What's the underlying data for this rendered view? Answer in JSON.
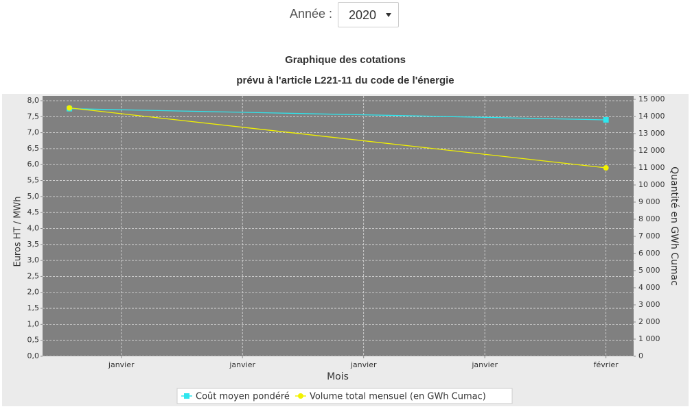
{
  "header": {
    "label": "Année :",
    "select": "2020"
  },
  "chart_data": {
    "type": "line",
    "title": "Graphique des cotations",
    "subtitle": "prévu à l'article L221-11 du code de l'énergie",
    "x_label": "Mois",
    "y_label": "Euros HT / MWh",
    "y2_label": "Quantité en GWh Cumac",
    "x": [
      0,
      31
    ],
    "xlim": [
      -1.55,
      32.6
    ],
    "xticks": [
      {
        "value": 3,
        "label": "janvier"
      },
      {
        "value": 10,
        "label": "janvier"
      },
      {
        "value": 17,
        "label": "janvier"
      },
      {
        "value": 24,
        "label": "janvier"
      },
      {
        "value": 31,
        "label": "février"
      }
    ],
    "ylim": [
      0,
      8.15
    ],
    "yticks": [
      {
        "value": 0,
        "label": "0,0"
      },
      {
        "value": 0.5,
        "label": "0,5"
      },
      {
        "value": 1,
        "label": "1,0"
      },
      {
        "value": 1.5,
        "label": "1,5"
      },
      {
        "value": 2,
        "label": "2,0"
      },
      {
        "value": 2.5,
        "label": "2,5"
      },
      {
        "value": 3,
        "label": "3,0"
      },
      {
        "value": 3.5,
        "label": "3,5"
      },
      {
        "value": 4,
        "label": "4,0"
      },
      {
        "value": 4.5,
        "label": "4,5"
      },
      {
        "value": 5,
        "label": "5,0"
      },
      {
        "value": 5.5,
        "label": "5,5"
      },
      {
        "value": 6,
        "label": "6,0"
      },
      {
        "value": 6.5,
        "label": "6,5"
      },
      {
        "value": 7,
        "label": "7,0"
      },
      {
        "value": 7.5,
        "label": "7,5"
      },
      {
        "value": 8,
        "label": "8,0"
      }
    ],
    "y2lim": [
      0,
      15200
    ],
    "y2ticks": [
      0,
      {
        "value": 1000,
        "label": "1 000"
      },
      {
        "value": 2000,
        "label": "2 000"
      },
      {
        "value": 3000,
        "label": "3 000"
      },
      {
        "value": 4000,
        "label": "4 000"
      },
      {
        "value": 5000,
        "label": "5 000"
      },
      {
        "value": 6000,
        "label": "6 000"
      },
      {
        "value": 7000,
        "label": "7 000"
      },
      {
        "value": 8000,
        "label": "8 000"
      },
      {
        "value": 9000,
        "label": "9 000"
      },
      {
        "value": 10000,
        "label": "10 000"
      },
      {
        "value": 11000,
        "label": "11 000"
      },
      {
        "value": 12000,
        "label": "12 000"
      },
      {
        "value": 13000,
        "label": "13 000"
      },
      {
        "value": 14000,
        "label": "14 000"
      },
      {
        "value": 15000,
        "label": "15 000"
      }
    ],
    "grid": true,
    "series": [
      {
        "name": "Coût moyen pondéré",
        "color": "#2ee6ee",
        "marker": "square",
        "values": [
          7.75,
          7.4
        ]
      },
      {
        "name": "Volume total mensuel (en GWh Cumac)",
        "color": "#f2f200",
        "marker": "circle",
        "axis": "y2",
        "values": [
          14500,
          11000
        ]
      }
    ]
  }
}
